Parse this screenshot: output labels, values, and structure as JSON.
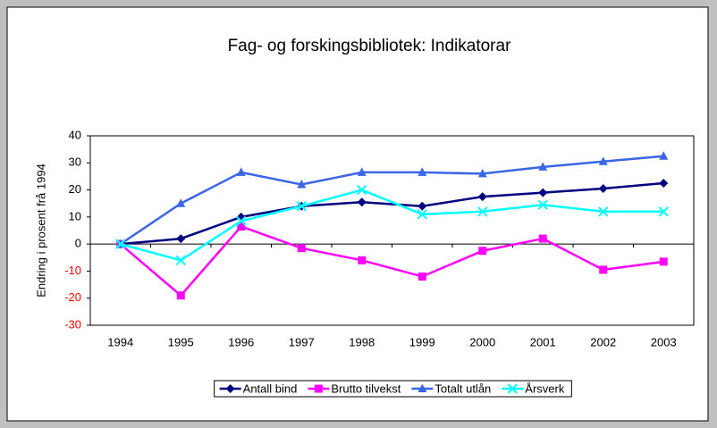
{
  "chart_data": {
    "type": "line",
    "title": "Fag- og forskingsbibliotek: Indikatorar",
    "y_label": "Endring i prosent frå 1994",
    "categories": [
      "1994",
      "1995",
      "1996",
      "1997",
      "1998",
      "1999",
      "2000",
      "2001",
      "2002",
      "2003"
    ],
    "series": [
      {
        "name": "Antall bind",
        "color": "#000080",
        "marker": "diamond",
        "values": [
          0,
          2,
          10,
          14,
          15.5,
          14,
          17.5,
          19,
          20.5,
          22.5
        ]
      },
      {
        "name": "Brutto tilvekst",
        "color": "#ff00ff",
        "marker": "square",
        "values": [
          0,
          -19,
          6.5,
          -1.5,
          -6,
          -12,
          -2.5,
          2,
          -9.5,
          -6.5
        ]
      },
      {
        "name": "Totalt utlån",
        "color": "#3a66e6",
        "marker": "triangle",
        "values": [
          0,
          15,
          26.5,
          22,
          26.5,
          26.5,
          26,
          28.5,
          30.5,
          32.5
        ]
      },
      {
        "name": "Årsverk",
        "color": "#00ffff",
        "marker": "x",
        "values": [
          0,
          -6,
          8.5,
          14,
          20,
          11,
          12,
          14.5,
          12,
          12
        ]
      }
    ],
    "ylim": [
      -30,
      40
    ],
    "yticks": [
      -30,
      -20,
      -10,
      0,
      10,
      20,
      30,
      40
    ],
    "negative_tick_color": "#ff0000",
    "grid": false,
    "legend": "bottom"
  }
}
